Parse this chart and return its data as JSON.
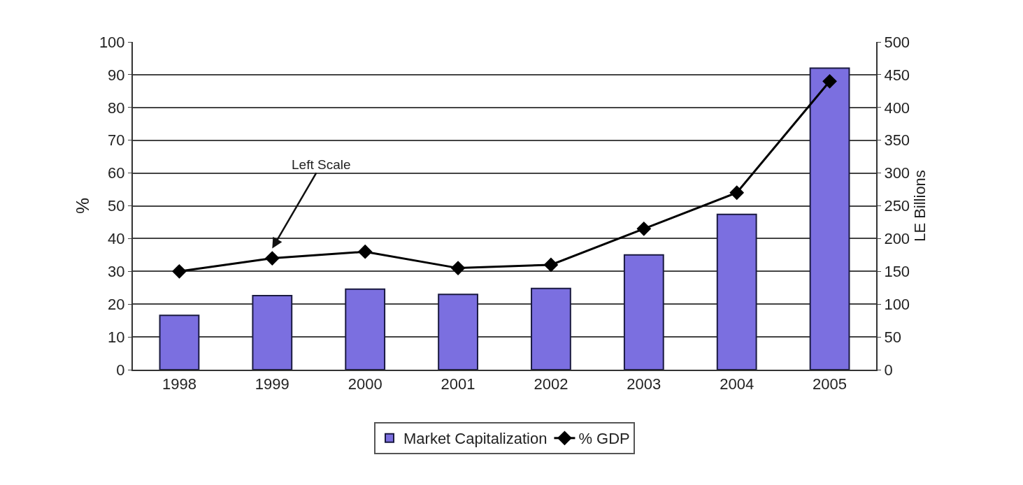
{
  "chart_data": {
    "type": "bar",
    "categories": [
      "1998",
      "1999",
      "2000",
      "2001",
      "2002",
      "2003",
      "2004",
      "2005"
    ],
    "series": [
      {
        "name": "Market Capitalization",
        "axis": "y2",
        "color": "#7b6fe0",
        "values": [
          83,
          113,
          123,
          115,
          124,
          175,
          237,
          460
        ]
      },
      {
        "name": "% GDP",
        "type": "line",
        "axis": "y",
        "color": "#000000",
        "marker": "diamond",
        "values": [
          30,
          34,
          36,
          31,
          32,
          43,
          54,
          88
        ]
      }
    ],
    "ylabel": "%",
    "y2label": "LE Billions",
    "ylim": [
      0,
      100
    ],
    "yticks": [
      0,
      10,
      20,
      30,
      40,
      50,
      60,
      70,
      80,
      90,
      100
    ],
    "y2lim": [
      0,
      500
    ],
    "y2ticks": [
      0,
      50,
      100,
      150,
      200,
      250,
      300,
      350,
      400,
      450,
      500
    ],
    "annotations": [
      {
        "text": "Left Scale",
        "x": "1999",
        "y": 37
      }
    ],
    "grid": "y",
    "legend": "bottom"
  }
}
